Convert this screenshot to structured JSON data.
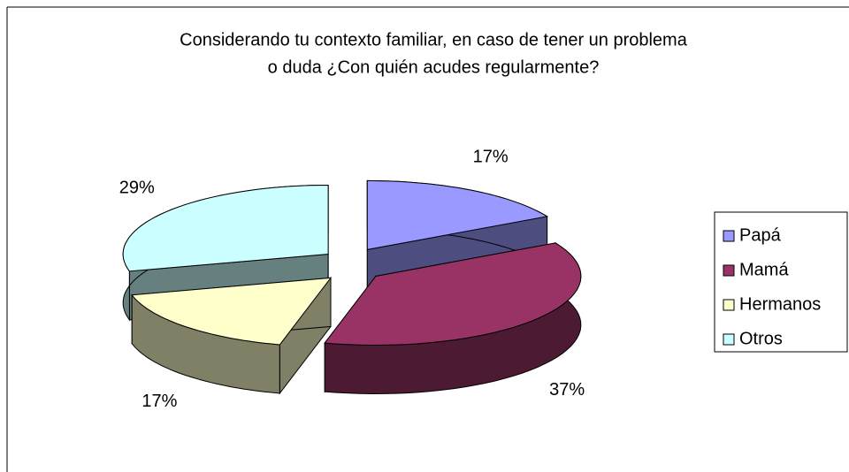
{
  "chart_data": {
    "type": "pie3d",
    "title": [
      "Considerando tu contexto familiar, en caso de tener un problema",
      "o duda ¿Con quién acudes regularmente?"
    ],
    "categories": [
      "Papá",
      "Mamá",
      "Hermanos",
      "Otros"
    ],
    "values": [
      17,
      37,
      17,
      29
    ],
    "value_labels": [
      "17%",
      "37%",
      "17%",
      "29%"
    ],
    "colors": [
      "#9999ff",
      "#993366",
      "#ffffcc",
      "#ccffff"
    ],
    "legend": "right"
  }
}
